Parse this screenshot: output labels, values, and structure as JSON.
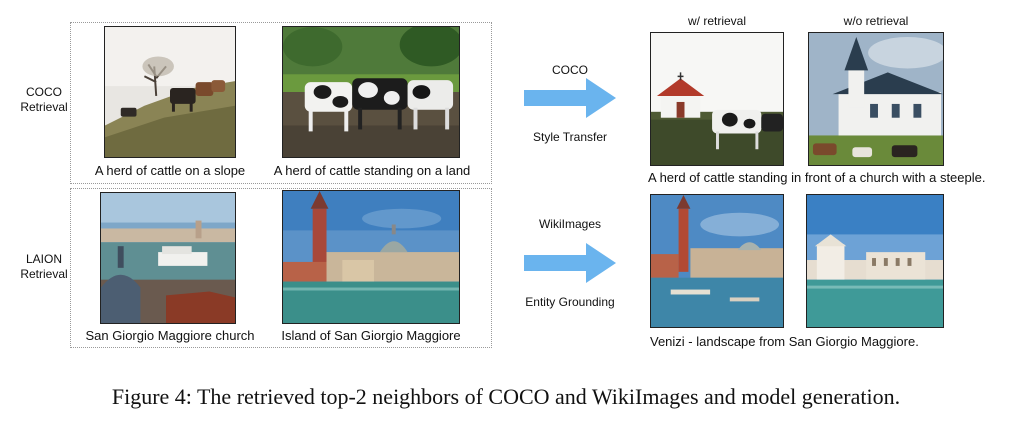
{
  "panels": {
    "coco": {
      "label_line1": "COCO",
      "label_line2": "Retrieval",
      "captions": [
        "A herd of cattle on a slope",
        "A herd of cattle standing on a land"
      ]
    },
    "laion": {
      "label_line1": "LAION",
      "label_line2": "Retrieval",
      "captions": [
        "San Giorgio Maggiore church",
        "Island of San Giorgio Maggiore"
      ]
    }
  },
  "arrows": {
    "top": {
      "label_above": "COCO",
      "label_below": "Style Transfer"
    },
    "bottom": {
      "label_above": "WikiImages",
      "label_below": "Entity Grounding"
    }
  },
  "results": {
    "headers": [
      "w/ retrieval",
      "w/o retrieval"
    ],
    "top_caption": "A herd of cattle standing in front of a church with a steeple.",
    "bottom_caption": "Venizi - landscape from San Giorgio Maggiore."
  },
  "figure_caption": "Figure 4: The retrieved top-2 neighbors of COCO and WikiImages and model generation.",
  "colors": {
    "arrow": "#6ab4ee",
    "panel_border": "#9a9a9a"
  }
}
